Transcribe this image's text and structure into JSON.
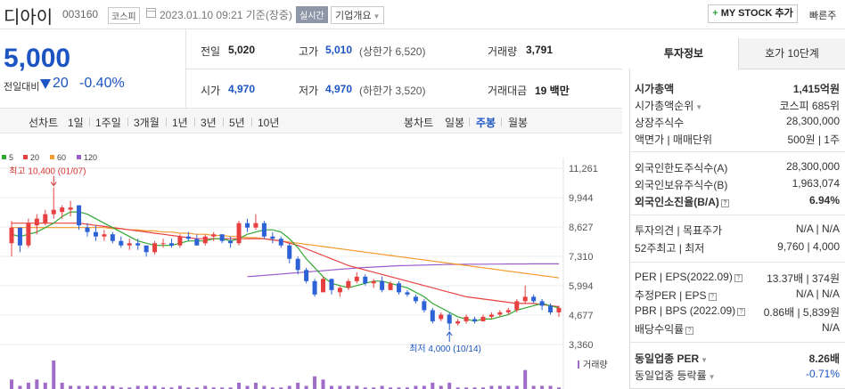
{
  "header": {
    "company_name": "디아이",
    "code": "003160",
    "market": "코스피",
    "datetime": "2023.01.10 09:21",
    "basis": "기준(장중)",
    "realtime_label": "실시간",
    "overview_label": "기업개요",
    "mystock_label": "MY STOCK 추가",
    "quick_label": "빠른주"
  },
  "price": {
    "current": "5,000",
    "change_label": "전일대비",
    "change_amount": "20",
    "change_pct": "-0.40%"
  },
  "quote": {
    "prev_label": "전일",
    "prev": "5,020",
    "high_label": "고가",
    "high": "5,010",
    "high_limit": "(상한가 6,520)",
    "volume_label": "거래량",
    "volume": "3,791",
    "open_label": "시가",
    "open": "4,970",
    "low_label": "저가",
    "low": "4,970",
    "low_limit": "(하한가 3,520)",
    "amount_label": "거래대금",
    "amount": "19 백만"
  },
  "period_tabs": {
    "line_label": "선차트",
    "line": [
      "1일",
      "1주일",
      "3개월",
      "1년",
      "3년",
      "5년",
      "10년"
    ],
    "candle_label": "봉차트",
    "candle": [
      "일봉",
      "주봉",
      "월봉"
    ],
    "active": "주봉"
  },
  "chart_data": {
    "type": "candlestick",
    "period": "weekly",
    "y_ticks": [
      "11,261",
      "9,944",
      "8,627",
      "7,310",
      "5,994",
      "4,677",
      "3,360"
    ],
    "ylim": [
      3360,
      11261
    ],
    "legend": [
      {
        "name": "5",
        "color": "#2fa82f"
      },
      {
        "name": "20",
        "color": "#e84040"
      },
      {
        "name": "60",
        "color": "#f59a2d"
      },
      {
        "name": "120",
        "color": "#9a5ec9"
      }
    ],
    "annotations": {
      "high": "최고 10,400 (01/07)",
      "low": "최저 4,000 (10/14)"
    },
    "volume_label": "거래량",
    "colors": {
      "up": "#e84040",
      "down": "#2c62d6",
      "volume": "#9f6dc8"
    },
    "candles": [
      [
        7900,
        8900,
        7300,
        8600
      ],
      [
        8600,
        8600,
        7500,
        7800
      ],
      [
        7800,
        9000,
        7700,
        8800
      ],
      [
        8700,
        9200,
        8300,
        9000
      ],
      [
        8800,
        9400,
        8700,
        9200
      ],
      [
        9200,
        10400,
        9000,
        9400
      ],
      [
        9300,
        9600,
        9000,
        9500
      ],
      [
        9400,
        9800,
        9100,
        9500
      ],
      [
        9600,
        9600,
        8500,
        8700
      ],
      [
        8600,
        8800,
        8200,
        8400
      ],
      [
        8400,
        8700,
        8000,
        8200
      ],
      [
        8200,
        8500,
        8000,
        8300
      ],
      [
        8300,
        8400,
        7900,
        8000
      ],
      [
        8000,
        8200,
        7700,
        7800
      ],
      [
        7800,
        8100,
        7600,
        7900
      ],
      [
        7900,
        8100,
        7600,
        7800
      ],
      [
        7800,
        7800,
        7300,
        7500
      ],
      [
        7500,
        8000,
        7400,
        7900
      ],
      [
        7900,
        8100,
        7700,
        7900
      ],
      [
        7900,
        8100,
        7700,
        7800
      ],
      [
        7800,
        8300,
        7700,
        8200
      ],
      [
        8200,
        8400,
        8000,
        8100
      ],
      [
        8100,
        8300,
        7800,
        7800
      ],
      [
        7900,
        8300,
        7800,
        8200
      ],
      [
        8200,
        8400,
        8000,
        8300
      ],
      [
        8300,
        8300,
        7900,
        8000
      ],
      [
        8000,
        8200,
        7700,
        7900
      ],
      [
        7900,
        8900,
        7800,
        8800
      ],
      [
        8800,
        9000,
        8400,
        8600
      ],
      [
        8600,
        9200,
        8500,
        8800
      ],
      [
        8800,
        8900,
        8100,
        8200
      ],
      [
        8200,
        8400,
        7900,
        8100
      ],
      [
        8100,
        8200,
        7700,
        7800
      ],
      [
        7800,
        7900,
        7000,
        7200
      ],
      [
        7200,
        7300,
        6500,
        6700
      ],
      [
        6700,
        6800,
        6100,
        6200
      ],
      [
        6200,
        6300,
        5500,
        5600
      ],
      [
        5700,
        6400,
        5700,
        6300
      ],
      [
        6300,
        6300,
        5600,
        5800
      ],
      [
        5700,
        6000,
        5500,
        5900
      ],
      [
        5900,
        6300,
        5800,
        6200
      ],
      [
        6200,
        6600,
        6100,
        6400
      ],
      [
        6400,
        6500,
        6000,
        6100
      ],
      [
        6100,
        6300,
        5900,
        6200
      ],
      [
        6200,
        6400,
        5700,
        5800
      ],
      [
        5800,
        6200,
        5800,
        6100
      ],
      [
        6100,
        6200,
        5600,
        5700
      ],
      [
        5700,
        5800,
        5500,
        5600
      ],
      [
        5500,
        5600,
        5200,
        5300
      ],
      [
        5300,
        5400,
        4800,
        4900
      ],
      [
        4900,
        5000,
        4300,
        4400
      ],
      [
        4500,
        4800,
        4400,
        4700
      ],
      [
        4700,
        4800,
        4000,
        4300
      ],
      [
        4300,
        4500,
        4200,
        4400
      ],
      [
        4400,
        4700,
        4300,
        4600
      ],
      [
        4500,
        4600,
        4300,
        4400
      ],
      [
        4400,
        4700,
        4400,
        4600
      ],
      [
        4600,
        4800,
        4500,
        4700
      ],
      [
        4700,
        4900,
        4600,
        4800
      ],
      [
        4800,
        5000,
        4700,
        4900
      ],
      [
        4900,
        5400,
        4800,
        5300
      ],
      [
        5300,
        6000,
        5200,
        5500
      ],
      [
        5500,
        5600,
        5200,
        5300
      ],
      [
        5300,
        5400,
        4900,
        5100
      ],
      [
        5100,
        5200,
        4700,
        4800
      ],
      [
        4800,
        5100,
        4600,
        5000
      ]
    ],
    "ma5": [
      8300,
      8200,
      8300,
      8400,
      8600,
      8800,
      9100,
      9300,
      9300,
      9200,
      9000,
      8800,
      8600,
      8400,
      8200,
      8000,
      7900,
      7800,
      7800,
      7800,
      7900,
      8000,
      8000,
      8000,
      8100,
      8100,
      8000,
      8100,
      8300,
      8400,
      8500,
      8500,
      8400,
      8100,
      7700,
      7200,
      6800,
      6400,
      6100,
      6000,
      5900,
      6000,
      6100,
      6200,
      6200,
      6100,
      6000,
      5900,
      5700,
      5500,
      5200,
      5000,
      4800,
      4600,
      4500,
      4400,
      4500,
      4500,
      4600,
      4700,
      4900,
      5000,
      5100,
      5200,
      5100,
      5000
    ],
    "ma20": [
      8800,
      8800,
      8800,
      8800,
      8800,
      8800,
      8800,
      8800,
      8800,
      8750,
      8700,
      8650,
      8600,
      8550,
      8500,
      8450,
      8400,
      8350,
      8300,
      8250,
      8200,
      8150,
      8100,
      8100,
      8100,
      8100,
      8100,
      8100,
      8100,
      8100,
      8100,
      8050,
      8000,
      7900,
      7800,
      7650,
      7500,
      7350,
      7200,
      7050,
      6900,
      6800,
      6700,
      6600,
      6500,
      6400,
      6300,
      6200,
      6100,
      6000,
      5900,
      5800,
      5700,
      5600,
      5500,
      5450,
      5400,
      5350,
      5300,
      5250,
      5200,
      5200,
      5200,
      5150,
      5100,
      5050
    ],
    "ma60": [
      8600,
      8600,
      8600,
      8600,
      8600,
      8600,
      8600,
      8600,
      8600,
      8600,
      8600,
      8600,
      8550,
      8550,
      8500,
      8500,
      8450,
      8450,
      8400,
      8400,
      8350,
      8350,
      8300,
      8300,
      8250,
      8250,
      8200,
      8200,
      8150,
      8150,
      8100,
      8050,
      8000,
      7950,
      7900,
      7850,
      7800,
      7750,
      7700,
      7650,
      7600,
      7550,
      7500,
      7450,
      7400,
      7350,
      7300,
      7250,
      7200,
      7150,
      7100,
      7050,
      7000,
      6950,
      6900,
      6850,
      6800,
      6750,
      6700,
      6650,
      6600,
      6550,
      6500,
      6450,
      6400,
      6350
    ],
    "ma120": [
      null,
      null,
      null,
      null,
      null,
      null,
      null,
      null,
      null,
      null,
      null,
      null,
      null,
      null,
      null,
      null,
      null,
      null,
      null,
      null,
      null,
      null,
      null,
      null,
      null,
      null,
      null,
      null,
      6400,
      6430,
      6460,
      6490,
      6520,
      6550,
      6580,
      6610,
      6640,
      6670,
      6700,
      6730,
      6760,
      6790,
      6810,
      6830,
      6850,
      6870,
      6890,
      6900,
      6910,
      6920,
      6930,
      6940,
      6950,
      6950,
      6955,
      6960,
      6960,
      6965,
      6965,
      6970,
      6970,
      6970,
      6975,
      6975,
      6975,
      6975
    ],
    "volume": [
      3,
      1,
      2,
      3,
      2,
      9,
      2,
      1,
      1,
      1,
      1,
      1,
      1,
      0.5,
      0.5,
      1,
      1,
      1,
      0.5,
      0.5,
      1,
      0.5,
      0.5,
      1,
      0.5,
      0.5,
      0.5,
      2,
      1,
      2,
      1,
      0.5,
      0.5,
      1,
      2,
      1,
      4,
      3,
      1,
      1,
      1,
      1,
      0.5,
      0.5,
      1,
      0.5,
      0.5,
      0.5,
      1,
      1,
      2,
      1,
      2,
      0.5,
      0.5,
      0.5,
      0.5,
      1,
      1,
      1,
      1,
      6,
      1,
      1,
      1,
      0.5
    ]
  },
  "invest_tabs": {
    "tab1": "투자정보",
    "tab2": "호가 10단계"
  },
  "invest": {
    "market_cap_label": "시가총액",
    "market_cap": "1,415억원",
    "rank_label": "시가총액순위",
    "rank": "코스피 685위",
    "shares_label": "상장주식수",
    "shares": "28,300,000",
    "par_label": "액면가 | 매매단위",
    "par": "500원 | 1주",
    "foreign_limit_label": "외국인한도주식수(A)",
    "foreign_limit": "28,300,000",
    "foreign_hold_label": "외국인보유주식수(B)",
    "foreign_hold": "1,963,074",
    "foreign_rate_label": "외국인소진율(B/A)",
    "foreign_rate": "6.94%",
    "opinion_label": "투자의견 | 목표주가",
    "opinion": "N/A | N/A",
    "w52_label": "52주최고 | 최저",
    "w52": "9,760 | 4,000",
    "per_label": "PER | EPS(2022.09)",
    "per": "13.37배 | 374원",
    "est_per_label": "추정PER | EPS",
    "est_per": "N/A | N/A",
    "pbr_label": "PBR | BPS (2022.09)",
    "pbr": "0.86배 | 5,839원",
    "div_label": "배당수익률",
    "div": "N/A",
    "ind_per_label": "동일업종 PER",
    "ind_per": "8.26배",
    "ind_rate_label": "동일업종 등락률",
    "ind_rate": "-0.71%"
  }
}
